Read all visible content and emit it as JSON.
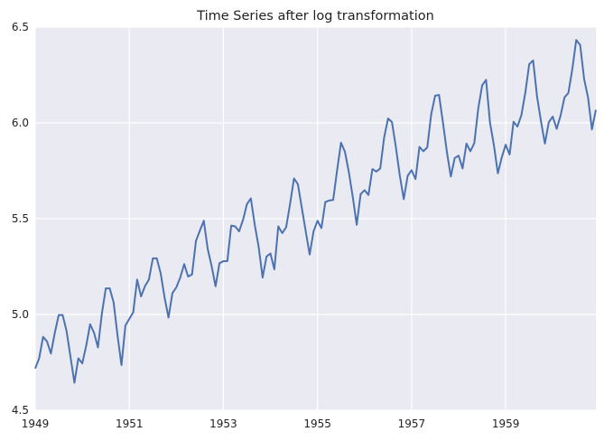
{
  "chart_data": {
    "type": "line",
    "title": "Time Series after log transformation",
    "xlabel": "",
    "ylabel": "",
    "xlim": [
      1949.0,
      1960.917
    ],
    "ylim": [
      4.5,
      6.5
    ],
    "x_ticks": [
      "1949",
      "1951",
      "1953",
      "1955",
      "1957",
      "1959"
    ],
    "y_ticks": [
      "4.5",
      "5.0",
      "5.5",
      "6.0",
      "6.5"
    ],
    "grid": true,
    "legend": "none",
    "colors": {
      "background": "#eaeaf2",
      "grid": "#ffffff",
      "line": "#4c72b0"
    },
    "series": [
      {
        "start_year": 1949,
        "frequency": "monthly",
        "values": [
          4.718,
          4.771,
          4.883,
          4.86,
          4.796,
          4.905,
          4.997,
          4.997,
          4.913,
          4.779,
          4.644,
          4.771,
          4.745,
          4.836,
          4.949,
          4.905,
          4.828,
          5.004,
          5.136,
          5.136,
          5.063,
          4.89,
          4.736,
          4.942,
          4.977,
          5.011,
          5.182,
          5.094,
          5.148,
          5.182,
          5.293,
          5.293,
          5.215,
          5.088,
          4.984,
          5.112,
          5.142,
          5.193,
          5.263,
          5.198,
          5.209,
          5.384,
          5.438,
          5.489,
          5.342,
          5.252,
          5.147,
          5.268,
          5.278,
          5.278,
          5.464,
          5.46,
          5.434,
          5.493,
          5.576,
          5.606,
          5.468,
          5.352,
          5.193,
          5.303,
          5.318,
          5.236,
          5.46,
          5.425,
          5.455,
          5.576,
          5.71,
          5.68,
          5.557,
          5.434,
          5.313,
          5.434,
          5.489,
          5.451,
          5.587,
          5.595,
          5.598,
          5.753,
          5.897,
          5.849,
          5.743,
          5.613,
          5.468,
          5.628,
          5.649,
          5.624,
          5.759,
          5.746,
          5.762,
          5.924,
          6.023,
          6.004,
          5.872,
          5.724,
          5.602,
          5.724,
          5.753,
          5.707,
          5.875,
          5.852,
          5.872,
          6.045,
          6.142,
          6.146,
          6.001,
          5.849,
          5.72,
          5.817,
          5.829,
          5.762,
          5.892,
          5.852,
          5.895,
          6.075,
          6.196,
          6.225,
          6.001,
          5.883,
          5.737,
          5.82,
          5.886,
          5.835,
          6.006,
          5.981,
          6.04,
          6.157,
          6.306,
          6.326,
          6.138,
          6.009,
          5.892,
          6.004,
          6.033,
          5.969,
          6.038,
          6.133,
          6.157,
          6.282,
          6.433,
          6.407,
          6.23,
          6.133,
          5.966,
          6.068
        ]
      }
    ]
  }
}
